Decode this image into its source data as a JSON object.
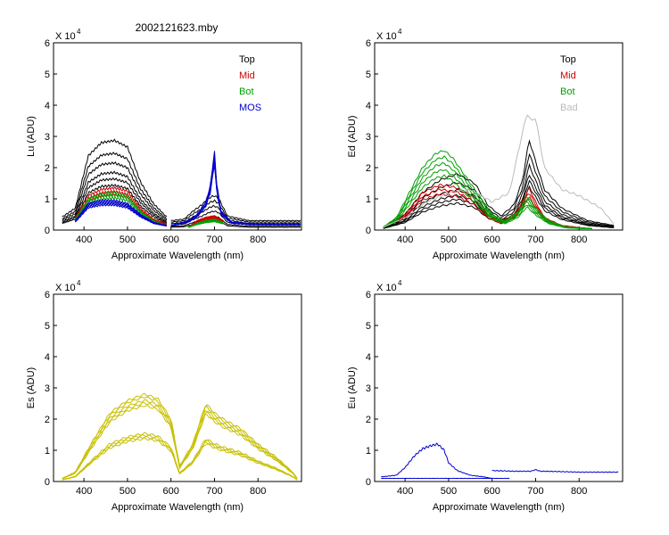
{
  "figure_title": "2002121623.mby",
  "chart_data": [
    {
      "id": "lu",
      "type": "line",
      "ylabel": "Lu (ADU)",
      "xlabel": "Approximate Wavelength (nm)",
      "xlim": [
        330,
        900
      ],
      "ylim": [
        0,
        6
      ],
      "xticks": [
        400,
        500,
        600,
        700,
        800
      ],
      "yticks": [
        0,
        1,
        2,
        3,
        4,
        5,
        6
      ],
      "multiplier": "X 10",
      "multiplier_exp": "4",
      "legend": [
        {
          "label": "Top",
          "color": "#000000"
        },
        {
          "label": "Mid",
          "color": "#cc0000"
        },
        {
          "label": "Bot",
          "color": "#00a000"
        },
        {
          "label": "MOS",
          "color": "#0000cc"
        }
      ],
      "series": [
        {
          "name": "Top",
          "color": "#000000",
          "count": 6,
          "segments": [
            {
              "x": [
                350,
                380,
                410,
                440,
                470,
                500,
                530,
                560,
                590
              ],
              "y": [
                0.3,
                0.5,
                1.7,
                2.0,
                2.05,
                1.9,
                1.1,
                0.6,
                0.3
              ],
              "scales": [
                1.4,
                1.2,
                1.05,
                0.9,
                0.8,
                0.7
              ]
            },
            {
              "x": [
                600,
                630,
                650,
                670,
                690,
                700,
                710,
                730,
                780,
                850,
                900
              ],
              "y": [
                0.3,
                0.35,
                0.6,
                0.8,
                1.05,
                1.1,
                1.0,
                0.45,
                0.3,
                0.3,
                0.3
              ],
              "scales": [
                1.0,
                0.85,
                0.7,
                0.55,
                0.4,
                0.3
              ]
            }
          ]
        },
        {
          "name": "Mid",
          "color": "#cc0000",
          "count": 3,
          "segments": [
            {
              "x": [
                380,
                410,
                440,
                470,
                500,
                530,
                560,
                590
              ],
              "y": [
                0.4,
                1.1,
                1.3,
                1.35,
                1.25,
                0.7,
                0.35,
                0.2
              ],
              "scales": [
                1.0,
                0.92,
                0.85
              ]
            },
            {
              "x": [
                640,
                660,
                680,
                700,
                720
              ],
              "y": [
                0.1,
                0.3,
                0.4,
                0.45,
                0.3
              ],
              "scales": [
                1.0,
                0.9,
                0.8
              ]
            }
          ]
        },
        {
          "name": "Bot",
          "color": "#00a000",
          "count": 3,
          "segments": [
            {
              "x": [
                380,
                410,
                440,
                470,
                500,
                530,
                560,
                590
              ],
              "y": [
                0.35,
                1.0,
                1.15,
                1.2,
                1.1,
                0.6,
                0.3,
                0.15
              ],
              "scales": [
                1.0,
                0.93,
                0.86
              ]
            },
            {
              "x": [
                640,
                660,
                680,
                700,
                720
              ],
              "y": [
                0.1,
                0.22,
                0.3,
                0.34,
                0.25
              ],
              "scales": [
                1.0,
                0.9,
                0.8
              ]
            }
          ]
        },
        {
          "name": "MOS",
          "color": "#0000cc",
          "count": 5,
          "segments": [
            {
              "x": [
                380,
                410,
                440,
                470,
                500,
                530,
                560,
                590
              ],
              "y": [
                0.3,
                0.85,
                0.95,
                0.95,
                0.85,
                0.5,
                0.25,
                0.15
              ],
              "scales": [
                1.0,
                0.96,
                0.92,
                0.88,
                0.84
              ]
            },
            {
              "x": [
                600,
                640,
                660,
                680,
                690,
                700,
                705,
                715,
                740,
                800,
                900
              ],
              "y": [
                0.15,
                0.3,
                0.5,
                0.9,
                1.4,
                2.5,
                1.5,
                0.6,
                0.25,
                0.2,
                0.2
              ],
              "scales": [
                1.0,
                0.96,
                0.92,
                0.88,
                0.84
              ]
            }
          ]
        }
      ]
    },
    {
      "id": "ed",
      "type": "line",
      "ylabel": "Ed  (ADU)",
      "xlabel": "Approximate Wavelength (nm)",
      "xlim": [
        330,
        900
      ],
      "ylim": [
        0,
        6
      ],
      "xticks": [
        400,
        500,
        600,
        700,
        800
      ],
      "yticks": [
        0,
        1,
        2,
        3,
        4,
        5,
        6
      ],
      "multiplier": "X 10",
      "multiplier_exp": "4",
      "legend": [
        {
          "label": "Top",
          "color": "#000000"
        },
        {
          "label": "Mid",
          "color": "#cc0000"
        },
        {
          "label": "Bot",
          "color": "#00a000"
        },
        {
          "label": "Bad",
          "color": "#bbbbbb"
        }
      ],
      "series": [
        {
          "name": "Top",
          "color": "#000000",
          "count": 6,
          "segments": [
            {
              "x": [
                350,
                400,
                440,
                480,
                520,
                560,
                590,
                620,
                650,
                670,
                685,
                700,
                720,
                760,
                820,
                880
              ],
              "y": [
                0.1,
                0.5,
                1.2,
                1.6,
                1.8,
                1.5,
                0.8,
                0.45,
                0.8,
                1.6,
                2.9,
                2.2,
                1.3,
                0.7,
                0.3,
                0.15
              ],
              "scales": [
                1.0,
                0.85,
                0.72,
                0.62,
                0.55,
                0.48
              ]
            }
          ]
        },
        {
          "name": "Mid",
          "color": "#cc0000",
          "count": 3,
          "segments": [
            {
              "x": [
                350,
                400,
                440,
                480,
                520,
                560,
                590,
                620,
                650,
                670,
                685,
                700,
                720,
                760,
                820
              ],
              "y": [
                0.1,
                0.5,
                1.2,
                1.45,
                1.35,
                1.0,
                0.5,
                0.25,
                0.5,
                0.9,
                1.35,
                0.9,
                0.4,
                0.15,
                0.05
              ],
              "scales": [
                1.0,
                0.9,
                0.8
              ]
            }
          ]
        },
        {
          "name": "Bot",
          "color": "#00a000",
          "count": 5,
          "segments": [
            {
              "x": [
                350,
                380,
                410,
                440,
                470,
                490,
                510,
                540,
                570,
                600,
                630,
                660,
                680,
                700,
                730,
                770,
                830
              ],
              "y": [
                0.1,
                0.4,
                1.2,
                2.0,
                2.45,
                2.55,
                2.3,
                1.7,
                1.1,
                0.5,
                0.3,
                0.6,
                1.1,
                0.7,
                0.3,
                0.1,
                0.05
              ],
              "scales": [
                1.0,
                0.92,
                0.84,
                0.76,
                0.68
              ]
            }
          ]
        },
        {
          "name": "Bad",
          "color": "#bbbbbb",
          "count": 1,
          "segments": [
            {
              "x": [
                350,
                400,
                450,
                500,
                550,
                600,
                640,
                660,
                680,
                690,
                700,
                720,
                760,
                800,
                850,
                880
              ],
              "y": [
                0.1,
                0.4,
                0.9,
                1.2,
                1.3,
                0.9,
                1.2,
                2.5,
                3.75,
                3.5,
                3.6,
                2.0,
                1.3,
                1.1,
                0.7,
                0.2
              ],
              "scales": [
                1.0
              ]
            }
          ]
        }
      ]
    },
    {
      "id": "es",
      "type": "line",
      "ylabel": "Es  (ADU)",
      "xlabel": "Approximate Wavelength (nm)",
      "xlim": [
        330,
        900
      ],
      "ylim": [
        0,
        6
      ],
      "xticks": [
        400,
        500,
        600,
        700,
        800
      ],
      "yticks": [
        0,
        1,
        2,
        3,
        4,
        5,
        6
      ],
      "multiplier": "X 10",
      "multiplier_exp": "4",
      "legend": [],
      "series": [
        {
          "name": "Es",
          "color": "#c8c000",
          "count": 9,
          "segments": [
            {
              "x": [
                350,
                380,
                420,
                460,
                500,
                540,
                570,
                600,
                620,
                650,
                680,
                700,
                720,
                760,
                800,
                840,
                880,
                890
              ],
              "y": [
                0.1,
                0.3,
                1.3,
                2.2,
                2.6,
                2.8,
                2.65,
                2.0,
                0.5,
                1.2,
                2.5,
                2.2,
                2.0,
                1.7,
                1.2,
                0.8,
                0.3,
                0.1
              ],
              "scales": [
                1.0,
                0.97,
                0.93,
                0.9,
                0.87,
                0.55,
                0.53,
                0.51,
                0.49
              ]
            }
          ]
        }
      ]
    },
    {
      "id": "eu",
      "type": "line",
      "ylabel": "Eu  (ADU)",
      "xlabel": "Approximate Wavelength (nm)",
      "xlim": [
        330,
        900
      ],
      "ylim": [
        0,
        6
      ],
      "xticks": [
        400,
        500,
        600,
        700,
        800
      ],
      "yticks": [
        0,
        1,
        2,
        3,
        4,
        5,
        6
      ],
      "multiplier": "X 10",
      "multiplier_exp": "4",
      "legend": [],
      "series": [
        {
          "name": "Eu",
          "color": "#0000cc",
          "count": 1,
          "segments": [
            {
              "x": [
                345,
                380,
                400,
                420,
                440,
                460,
                475,
                490,
                500,
                520,
                550,
                580,
                600
              ],
              "y": [
                0.15,
                0.2,
                0.45,
                0.8,
                1.05,
                1.15,
                1.2,
                1.0,
                0.6,
                0.35,
                0.2,
                0.15,
                0.1
              ],
              "scales": [
                1.0
              ]
            },
            {
              "x": [
                345,
                640
              ],
              "y": [
                0.1,
                0.1
              ],
              "scales": [
                1.0
              ]
            },
            {
              "x": [
                600,
                650,
                690,
                700,
                710,
                750,
                800,
                850,
                890
              ],
              "y": [
                0.35,
                0.33,
                0.33,
                0.38,
                0.33,
                0.32,
                0.3,
                0.3,
                0.3
              ],
              "scales": [
                1.0
              ]
            }
          ]
        }
      ]
    }
  ]
}
